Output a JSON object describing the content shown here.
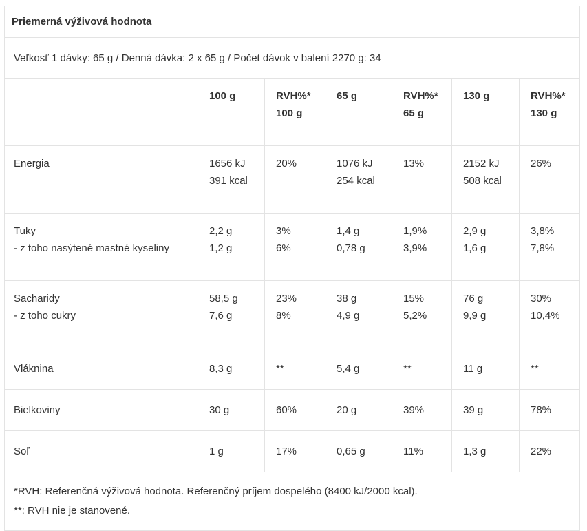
{
  "title": "Priemerná výživová hodnota",
  "serving_info": "Veľkosť 1 dávky: 65 g / Denná dávka: 2 x 65 g / Počet dávok v balení 2270 g: 34",
  "columns": [
    [
      "100 g"
    ],
    [
      "RVH%*",
      "100 g"
    ],
    [
      "65 g"
    ],
    [
      "RVH%*",
      "65 g"
    ],
    [
      "130 g"
    ],
    [
      "RVH%*",
      "130 g"
    ]
  ],
  "rows": [
    {
      "label": [
        "Energia"
      ],
      "values": [
        [
          "1656 kJ",
          "391 kcal"
        ],
        [
          "20%"
        ],
        [
          "1076 kJ",
          "254 kcal"
        ],
        [
          "13%"
        ],
        [
          "2152 kJ",
          "508 kcal"
        ],
        [
          "26%"
        ]
      ]
    },
    {
      "label": [
        "Tuky",
        "- z toho nasýtené mastné kyseliny"
      ],
      "values": [
        [
          "2,2 g",
          "1,2 g"
        ],
        [
          "3%",
          "6%"
        ],
        [
          "1,4 g",
          "0,78 g"
        ],
        [
          "1,9%",
          "3,9%"
        ],
        [
          "2,9 g",
          "1,6 g"
        ],
        [
          "3,8%",
          "7,8%"
        ]
      ]
    },
    {
      "label": [
        "Sacharidy",
        "- z toho cukry"
      ],
      "values": [
        [
          "58,5 g",
          "7,6 g"
        ],
        [
          "23%",
          "8%"
        ],
        [
          "38 g",
          "4,9 g"
        ],
        [
          "15%",
          "5,2%"
        ],
        [
          "76 g",
          "9,9 g"
        ],
        [
          "30%",
          "10,4%"
        ]
      ]
    },
    {
      "label": [
        "Vláknina"
      ],
      "values": [
        [
          "8,3 g"
        ],
        [
          "**"
        ],
        [
          "5,4 g"
        ],
        [
          "**"
        ],
        [
          "11 g"
        ],
        [
          "**"
        ]
      ]
    },
    {
      "label": [
        "Bielkoviny"
      ],
      "values": [
        [
          "30 g"
        ],
        [
          "60%"
        ],
        [
          "20 g"
        ],
        [
          "39%"
        ],
        [
          "39 g"
        ],
        [
          "78%"
        ]
      ]
    },
    {
      "label": [
        "Soľ"
      ],
      "values": [
        [
          "1 g"
        ],
        [
          "17%"
        ],
        [
          "0,65 g"
        ],
        [
          "11%"
        ],
        [
          "1,3 g"
        ],
        [
          "22%"
        ]
      ]
    }
  ],
  "footnotes": [
    "*RVH: Referenčná výživová hodnota. Referenčný príjem dospelého (8400 kJ/2000 kcal).",
    "**: RVH nie je stanovené."
  ]
}
